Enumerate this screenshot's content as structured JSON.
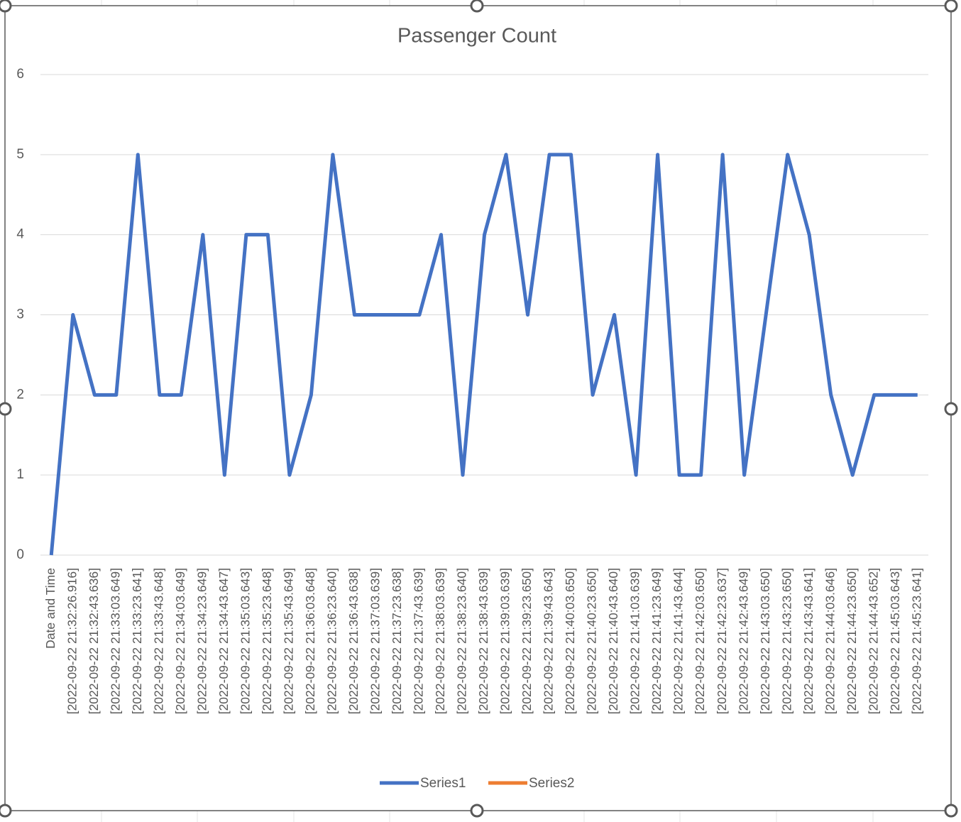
{
  "chart_data": {
    "type": "line",
    "title": "Passenger Count",
    "categories": [
      "Date and Time",
      "[2022-09-22 21:32:26.916]",
      "[2022-09-22 21:32:43.636]",
      "[2022-09-22 21:33:03.649]",
      "[2022-09-22 21:33:23.641]",
      "[2022-09-22 21:33:43.648]",
      "[2022-09-22 21:34:03.649]",
      "[2022-09-22 21:34:23.649]",
      "[2022-09-22 21:34:43.647]",
      "[2022-09-22 21:35:03.643]",
      "[2022-09-22 21:35:23.648]",
      "[2022-09-22 21:35:43.649]",
      "[2022-09-22 21:36:03.648]",
      "[2022-09-22 21:36:23.640]",
      "[2022-09-22 21:36:43.638]",
      "[2022-09-22 21:37:03.639]",
      "[2022-09-22 21:37:23.638]",
      "[2022-09-22 21:37:43.639]",
      "[2022-09-22 21:38:03.639]",
      "[2022-09-22 21:38:23.640]",
      "[2022-09-22 21:38:43.639]",
      "[2022-09-22 21:39:03.639]",
      "[2022-09-22 21:39:23.650]",
      "[2022-09-22 21:39:43.643]",
      "[2022-09-22 21:40:03.650]",
      "[2022-09-22 21:40:23.650]",
      "[2022-09-22 21:40:43.640]",
      "[2022-09-22 21:41:03.639]",
      "[2022-09-22 21:41:23.649]",
      "[2022-09-22 21:41:43.644]",
      "[2022-09-22 21:42:03.650]",
      "[2022-09-22 21:42:23.637]",
      "[2022-09-22 21:42:43.649]",
      "[2022-09-22 21:43:03.650]",
      "[2022-09-22 21:43:23.650]",
      "[2022-09-22 21:43:43.641]",
      "[2022-09-22 21:44:03.646]",
      "[2022-09-22 21:44:23.650]",
      "[2022-09-22 21:44:43.652]",
      "[2022-09-22 21:45:03.643]",
      "[2022-09-22 21:45:23.641]"
    ],
    "series": [
      {
        "name": "Series1",
        "color": "#4472c4",
        "values": [
          0,
          3,
          2,
          2,
          5,
          2,
          2,
          4,
          1,
          4,
          4,
          1,
          2,
          5,
          3,
          3,
          3,
          3,
          4,
          1,
          4,
          5,
          3,
          5,
          5,
          2,
          3,
          1,
          5,
          1,
          1,
          5,
          1,
          3,
          5,
          4,
          2,
          1,
          2,
          2,
          2
        ]
      },
      {
        "name": "Series2",
        "color": "#ed7d31",
        "values": [
          null,
          null,
          null,
          null,
          null,
          null,
          null,
          null,
          null,
          null,
          null,
          null,
          null,
          null,
          null,
          null,
          null,
          null,
          null,
          null,
          null,
          null,
          null,
          null,
          null,
          null,
          null,
          null,
          null,
          null,
          null,
          null,
          null,
          null,
          null,
          null,
          null,
          null,
          null,
          null,
          null
        ]
      }
    ],
    "ylim": [
      0,
      6
    ],
    "yticks": [
      0,
      1,
      2,
      3,
      4,
      5,
      6
    ],
    "grid": true,
    "legend": "bottom"
  }
}
